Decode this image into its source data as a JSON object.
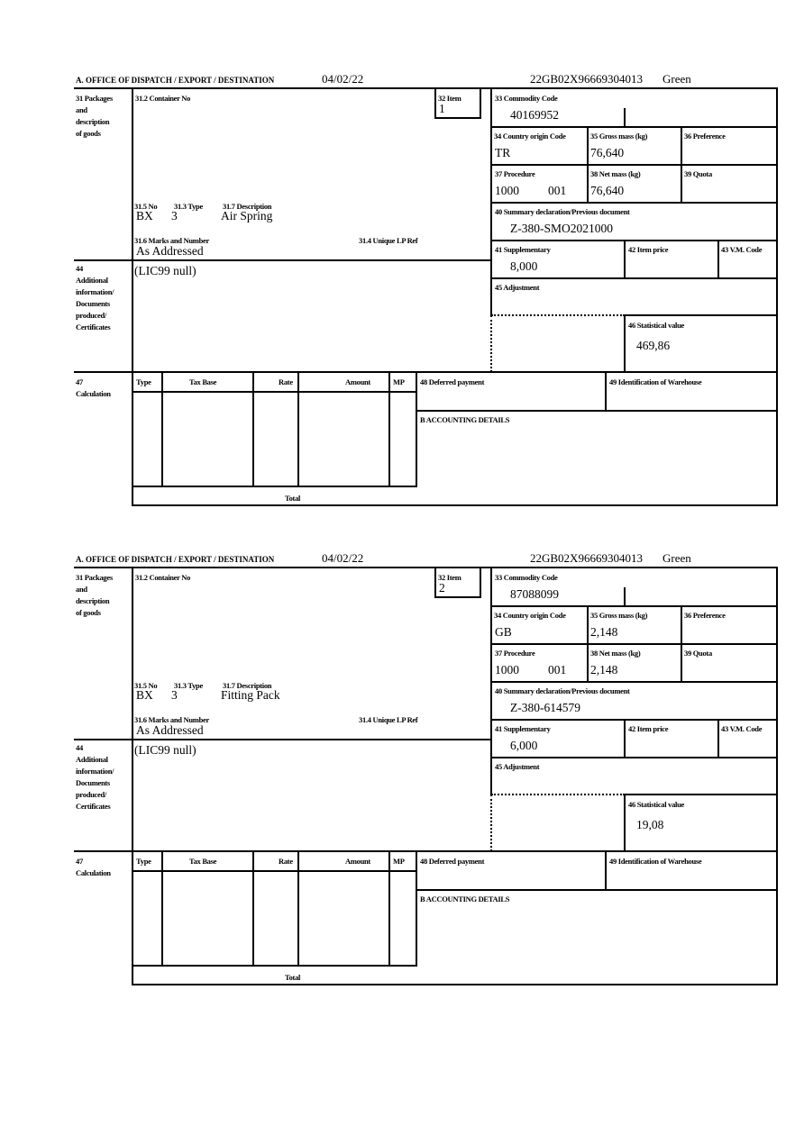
{
  "labels": {
    "office": "A.  OFFICE OF DISPATCH / EXPORT / DESTINATION",
    "b31_1": "31 Packages",
    "b31_2": "and",
    "b31_3": "description",
    "b31_4": "of goods",
    "container": "31.2 Container No",
    "item": "32 Item",
    "no": "31.5 No",
    "type": "31.3 Type",
    "description": "31.7 Description",
    "marks": "31.6 Marks and Number",
    "unique_ref": "31.4 Unique LP Ref",
    "b44_1": "44",
    "b44_2": "Additional",
    "b44_3": "information/",
    "b44_4": "Documents",
    "b44_5": "produced/",
    "b44_6": "Certificates",
    "commodity": "33 Commodity Code",
    "origin": "34 Country origin Code",
    "gross": "35 Gross mass (kg)",
    "preference": "36 Preference",
    "procedure": "37 Procedure",
    "net": "38 Net mass (kg)",
    "quota": "39 Quota",
    "summary": "40 Summary declaration/Previous document",
    "supplementary": "41 Supplementary",
    "item_price": "42 Item price",
    "vm_code": "43 V.M. Code",
    "adjustment": "45 Adjustment",
    "statistical": "46 Statistical value",
    "b47_1": "47",
    "b47_2": "Calculation",
    "col_type": "Type",
    "col_tax_base": "Tax Base",
    "col_rate": "Rate",
    "col_amount": "Amount",
    "col_mp": "MP",
    "deferred": "48 Deferred payment",
    "warehouse": "49 Identification of Warehouse",
    "accounting": "B ACCOUNTING DETAILS",
    "total": "Total"
  },
  "forms": [
    {
      "date": "04/02/22",
      "reference": "22GB02X96669304013",
      "route": "Green",
      "item": "1",
      "no": "BX",
      "type": "3",
      "description": "Air Spring",
      "marks": "As Addressed",
      "additional_info": "(LIC99 null)",
      "commodity": "40169952",
      "origin": "TR",
      "gross": "76,640",
      "procedure": "1000",
      "procedure_ext": "001",
      "net": "76,640",
      "summary": "Z-380-SMO2021000",
      "supplementary": "8,000",
      "statistical": "469,86"
    },
    {
      "date": "04/02/22",
      "reference": "22GB02X96669304013",
      "route": "Green",
      "item": "2",
      "no": "BX",
      "type": "3",
      "description": "Fitting Pack",
      "marks": "As Addressed",
      "additional_info": "(LIC99 null)",
      "commodity": "87088099",
      "origin": "GB",
      "gross": "2,148",
      "procedure": "1000",
      "procedure_ext": "001",
      "net": "2,148",
      "summary": "Z-380-614579",
      "supplementary": "6,000",
      "statistical": "19,08"
    }
  ]
}
